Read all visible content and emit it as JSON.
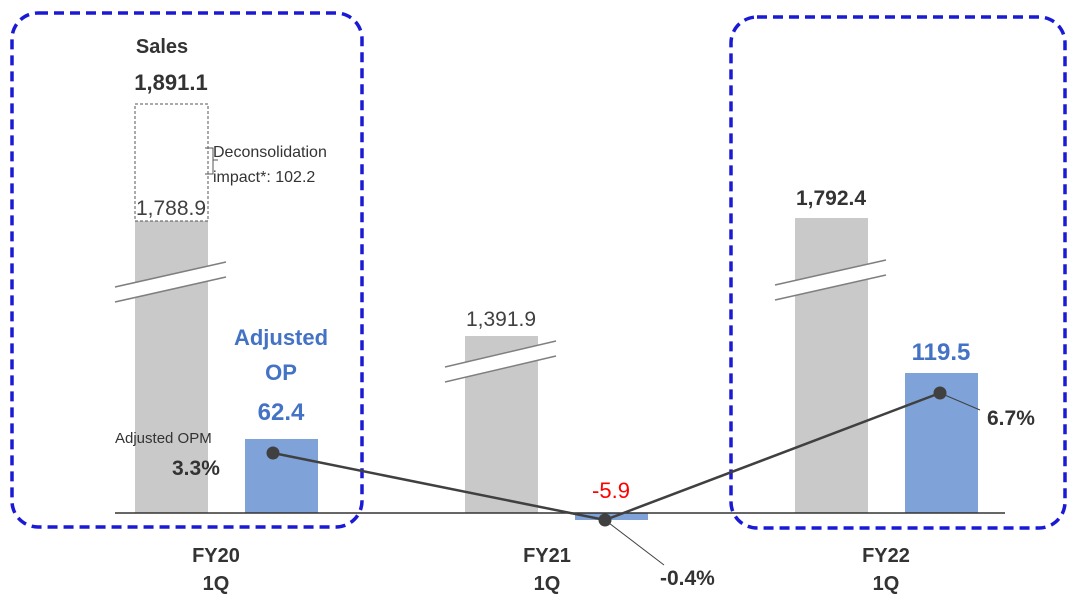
{
  "chart_data": {
    "type": "bar",
    "categories": [
      {
        "top": "FY20",
        "bottom": "1Q"
      },
      {
        "top": "FY21",
        "bottom": "1Q"
      },
      {
        "top": "FY22",
        "bottom": "1Q"
      }
    ],
    "series": [
      {
        "name": "Sales",
        "values": [
          1788.9,
          1391.9,
          1792.4
        ],
        "labels": [
          "1,788.9",
          "1,391.9",
          "1,792.4"
        ],
        "color": "#c9c9c9"
      },
      {
        "name": "Adjusted OP",
        "values": [
          62.4,
          -5.9,
          119.5
        ],
        "labels": [
          "62.4",
          "-5.9",
          "119.5"
        ],
        "color": "#7fa3d8"
      },
      {
        "name": "Adjusted OPM",
        "values": [
          3.3,
          -0.4,
          6.7
        ],
        "labels": [
          "3.3%",
          "-0.4%",
          "6.7%"
        ],
        "color": "#404040"
      }
    ],
    "sales_total": {
      "value": 1891.1,
      "label": "1,891.1"
    },
    "sales_title": "Sales",
    "op_title_line1": "Adjusted",
    "op_title_line2": "OP",
    "opm_title": "Adjusted OPM",
    "deconsolidation": {
      "line1": "Deconsolidation",
      "line2": "impact*: 102.2",
      "value": 102.2
    },
    "highlighted_categories": [
      "FY20 1Q",
      "FY22 1Q"
    ],
    "axis_break": true,
    "grid": false,
    "colors": {
      "op_label": "#4472c4",
      "negative": "#ff0000",
      "highlight_border": "#1a1ad6",
      "text": "#333333"
    }
  }
}
